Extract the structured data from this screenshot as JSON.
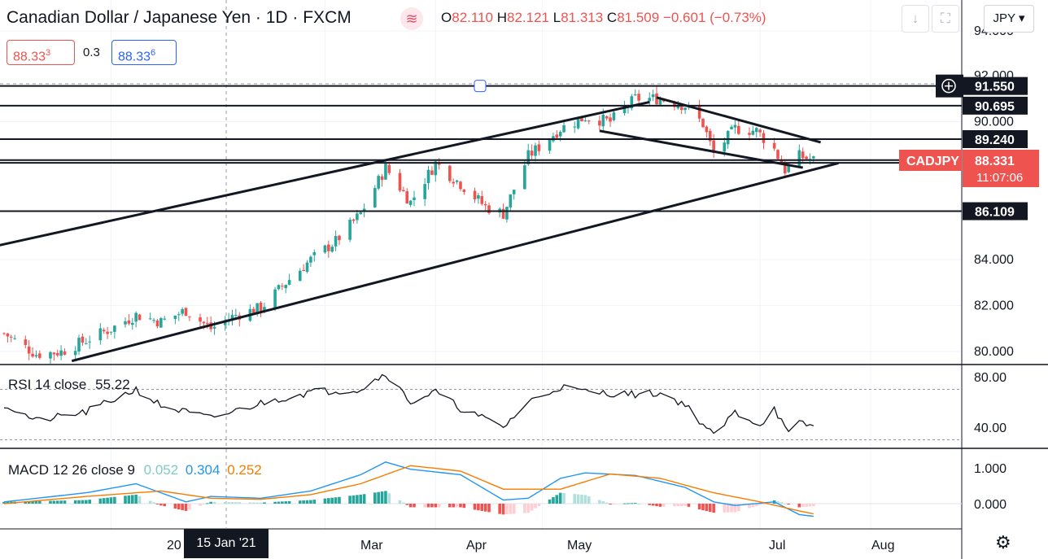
{
  "header": {
    "symbol_title": "Canadian Dollar / Japanese Yen · 1D · FXCM",
    "ohlc": {
      "o_label": "O",
      "o": "82.110",
      "h_label": "H",
      "h": "82.121",
      "l_label": "L",
      "l": "81.313",
      "c_label": "C",
      "c": "81.509",
      "change": "−0.601 (−0.73%)"
    },
    "sell_price_main": "88.33",
    "sell_price_small": "3",
    "spread": "0.3",
    "buy_price_main": "88.33",
    "buy_price_small": "6",
    "currency_button": "JPY ▾",
    "logo_glyph": "≋",
    "download_icon": "download-icon",
    "fullscreen_icon": "fullscreen-icon"
  },
  "colors": {
    "up": "#26a69a",
    "down": "#ef5350",
    "macd": "#2196f3",
    "signal": "#f57c00",
    "hist_up_strong": "#26a69a",
    "hist_up_weak": "#b2dfdb",
    "hist_down_strong": "#ef5350",
    "hist_down_weak": "#ffcdd2",
    "rsi": "#131722",
    "label_bg": "#131722",
    "price_tag": "#ef5350"
  },
  "price_axis": {
    "ticks": [
      "94.000",
      "92.000",
      "90.000",
      "84.000",
      "82.000",
      "80.000"
    ],
    "level_labels": [
      "91.550",
      "90.695",
      "89.240",
      "88.212",
      "86.109"
    ],
    "symbol_tag": "CADJPY",
    "last_price": "88.331",
    "countdown": "11:07:06"
  },
  "rsi": {
    "label": "RSI 14 close",
    "value": "55.22",
    "ticks": [
      "80.00",
      "40.00"
    ]
  },
  "macd": {
    "label": "MACD 12 26 close 9",
    "hist": "0.052",
    "macd_value": "0.304",
    "signal_value": "0.252",
    "ticks": [
      "1.000",
      "0.000"
    ]
  },
  "time_axis": {
    "labels": [
      "20",
      "Mar",
      "Apr",
      "May",
      "Jul",
      "Aug"
    ],
    "crosshair_date": "15 Jan '21"
  },
  "chart_data": {
    "type": "candlestick",
    "symbol": "CADJPY",
    "interval": "1D",
    "x_range": [
      "2020-12-01",
      "2021-07-19"
    ],
    "ylim": [
      79.6,
      94.2
    ],
    "horizontal_levels": [
      91.55,
      90.695,
      89.24,
      88.331,
      88.212,
      86.109
    ],
    "trendlines": [
      {
        "from": [
          "2020-11-01",
          83.65
        ],
        "to": [
          "2021-05-31",
          90.85
        ]
      },
      {
        "from": [
          "2020-12-20",
          79.6
        ],
        "to": [
          "2021-07-23",
          88.2
        ]
      },
      {
        "from": [
          "2021-06-02",
          91.05
        ],
        "to": [
          "2021-07-18",
          89.1
        ]
      },
      {
        "from": [
          "2021-05-17",
          89.6
        ],
        "to": [
          "2021-07-13",
          88.0
        ]
      }
    ],
    "close_path": [
      [
        "2020-12-01",
        80.8
      ],
      [
        "2020-12-10",
        79.9
      ],
      [
        "2020-12-17",
        80.0
      ],
      [
        "2020-12-24",
        80.5
      ],
      [
        "2020-12-31",
        81.0
      ],
      [
        "2021-01-07",
        81.6
      ],
      [
        "2021-01-14",
        81.3
      ],
      [
        "2021-01-21",
        81.8
      ],
      [
        "2021-01-28",
        81.0
      ],
      [
        "2021-02-04",
        81.6
      ],
      [
        "2021-02-11",
        81.9
      ],
      [
        "2021-02-18",
        83.0
      ],
      [
        "2021-02-25",
        84.0
      ],
      [
        "2021-03-04",
        84.8
      ],
      [
        "2021-03-11",
        86.0
      ],
      [
        "2021-03-18",
        88.0
      ],
      [
        "2021-03-25",
        86.5
      ],
      [
        "2021-04-01",
        88.2
      ],
      [
        "2021-04-08",
        87.3
      ],
      [
        "2021-04-15",
        86.3
      ],
      [
        "2021-04-20",
        86.0
      ],
      [
        "2021-04-27",
        88.5
      ],
      [
        "2021-05-06",
        89.7
      ],
      [
        "2021-05-13",
        90.2
      ],
      [
        "2021-05-20",
        90.0
      ],
      [
        "2021-05-27",
        91.0
      ],
      [
        "2021-06-03",
        91.0
      ],
      [
        "2021-06-10",
        90.7
      ],
      [
        "2021-06-15",
        89.9
      ],
      [
        "2021-06-18",
        88.6
      ],
      [
        "2021-06-24",
        89.7
      ],
      [
        "2021-06-30",
        89.6
      ],
      [
        "2021-07-05",
        88.8
      ],
      [
        "2021-07-08",
        87.9
      ],
      [
        "2021-07-12",
        88.5
      ],
      [
        "2021-07-16",
        88.33
      ]
    ],
    "rsi_series": [
      [
        "2020-12-01",
        58
      ],
      [
        "2020-12-10",
        45
      ],
      [
        "2020-12-24",
        52
      ],
      [
        "2021-01-07",
        70
      ],
      [
        "2021-01-14",
        57
      ],
      [
        "2021-01-28",
        47
      ],
      [
        "2021-02-11",
        59
      ],
      [
        "2021-02-25",
        68
      ],
      [
        "2021-03-11",
        70
      ],
      [
        "2021-03-18",
        83
      ],
      [
        "2021-03-25",
        60
      ],
      [
        "2021-04-01",
        68
      ],
      [
        "2021-04-08",
        55
      ],
      [
        "2021-04-20",
        40
      ],
      [
        "2021-04-27",
        60
      ],
      [
        "2021-05-06",
        72
      ],
      [
        "2021-05-13",
        68
      ],
      [
        "2021-05-27",
        66
      ],
      [
        "2021-06-03",
        67
      ],
      [
        "2021-06-10",
        58
      ],
      [
        "2021-06-18",
        33
      ],
      [
        "2021-06-24",
        52
      ],
      [
        "2021-07-01",
        42
      ],
      [
        "2021-07-05",
        55
      ],
      [
        "2021-07-09",
        34
      ],
      [
        "2021-07-12",
        43
      ],
      [
        "2021-07-16",
        41
      ]
    ],
    "macd_series": [
      [
        "2020-12-01",
        0.05
      ],
      [
        "2020-12-24",
        0.3
      ],
      [
        "2021-01-07",
        0.55
      ],
      [
        "2021-01-21",
        0.05
      ],
      [
        "2021-01-28",
        0.2
      ],
      [
        "2021-02-11",
        0.15
      ],
      [
        "2021-02-25",
        0.35
      ],
      [
        "2021-03-11",
        0.8
      ],
      [
        "2021-03-18",
        1.15
      ],
      [
        "2021-03-25",
        0.95
      ],
      [
        "2021-04-08",
        0.8
      ],
      [
        "2021-04-20",
        0.1
      ],
      [
        "2021-04-27",
        0.15
      ],
      [
        "2021-05-06",
        0.7
      ],
      [
        "2021-05-13",
        0.85
      ],
      [
        "2021-05-27",
        0.78
      ],
      [
        "2021-06-10",
        0.45
      ],
      [
        "2021-06-18",
        0.05
      ],
      [
        "2021-06-24",
        -0.05
      ],
      [
        "2021-07-05",
        0.05
      ],
      [
        "2021-07-12",
        -0.3
      ],
      [
        "2021-07-16",
        -0.35
      ]
    ],
    "signal_series": [
      [
        "2020-12-01",
        0.0
      ],
      [
        "2020-12-24",
        0.2
      ],
      [
        "2021-01-14",
        0.35
      ],
      [
        "2021-01-28",
        0.15
      ],
      [
        "2021-02-11",
        0.12
      ],
      [
        "2021-02-25",
        0.25
      ],
      [
        "2021-03-11",
        0.55
      ],
      [
        "2021-03-25",
        1.05
      ],
      [
        "2021-04-08",
        0.9
      ],
      [
        "2021-04-20",
        0.4
      ],
      [
        "2021-05-06",
        0.4
      ],
      [
        "2021-05-20",
        0.82
      ],
      [
        "2021-06-03",
        0.7
      ],
      [
        "2021-06-18",
        0.3
      ],
      [
        "2021-07-01",
        0.05
      ],
      [
        "2021-07-12",
        -0.2
      ],
      [
        "2021-07-16",
        -0.28
      ]
    ]
  }
}
